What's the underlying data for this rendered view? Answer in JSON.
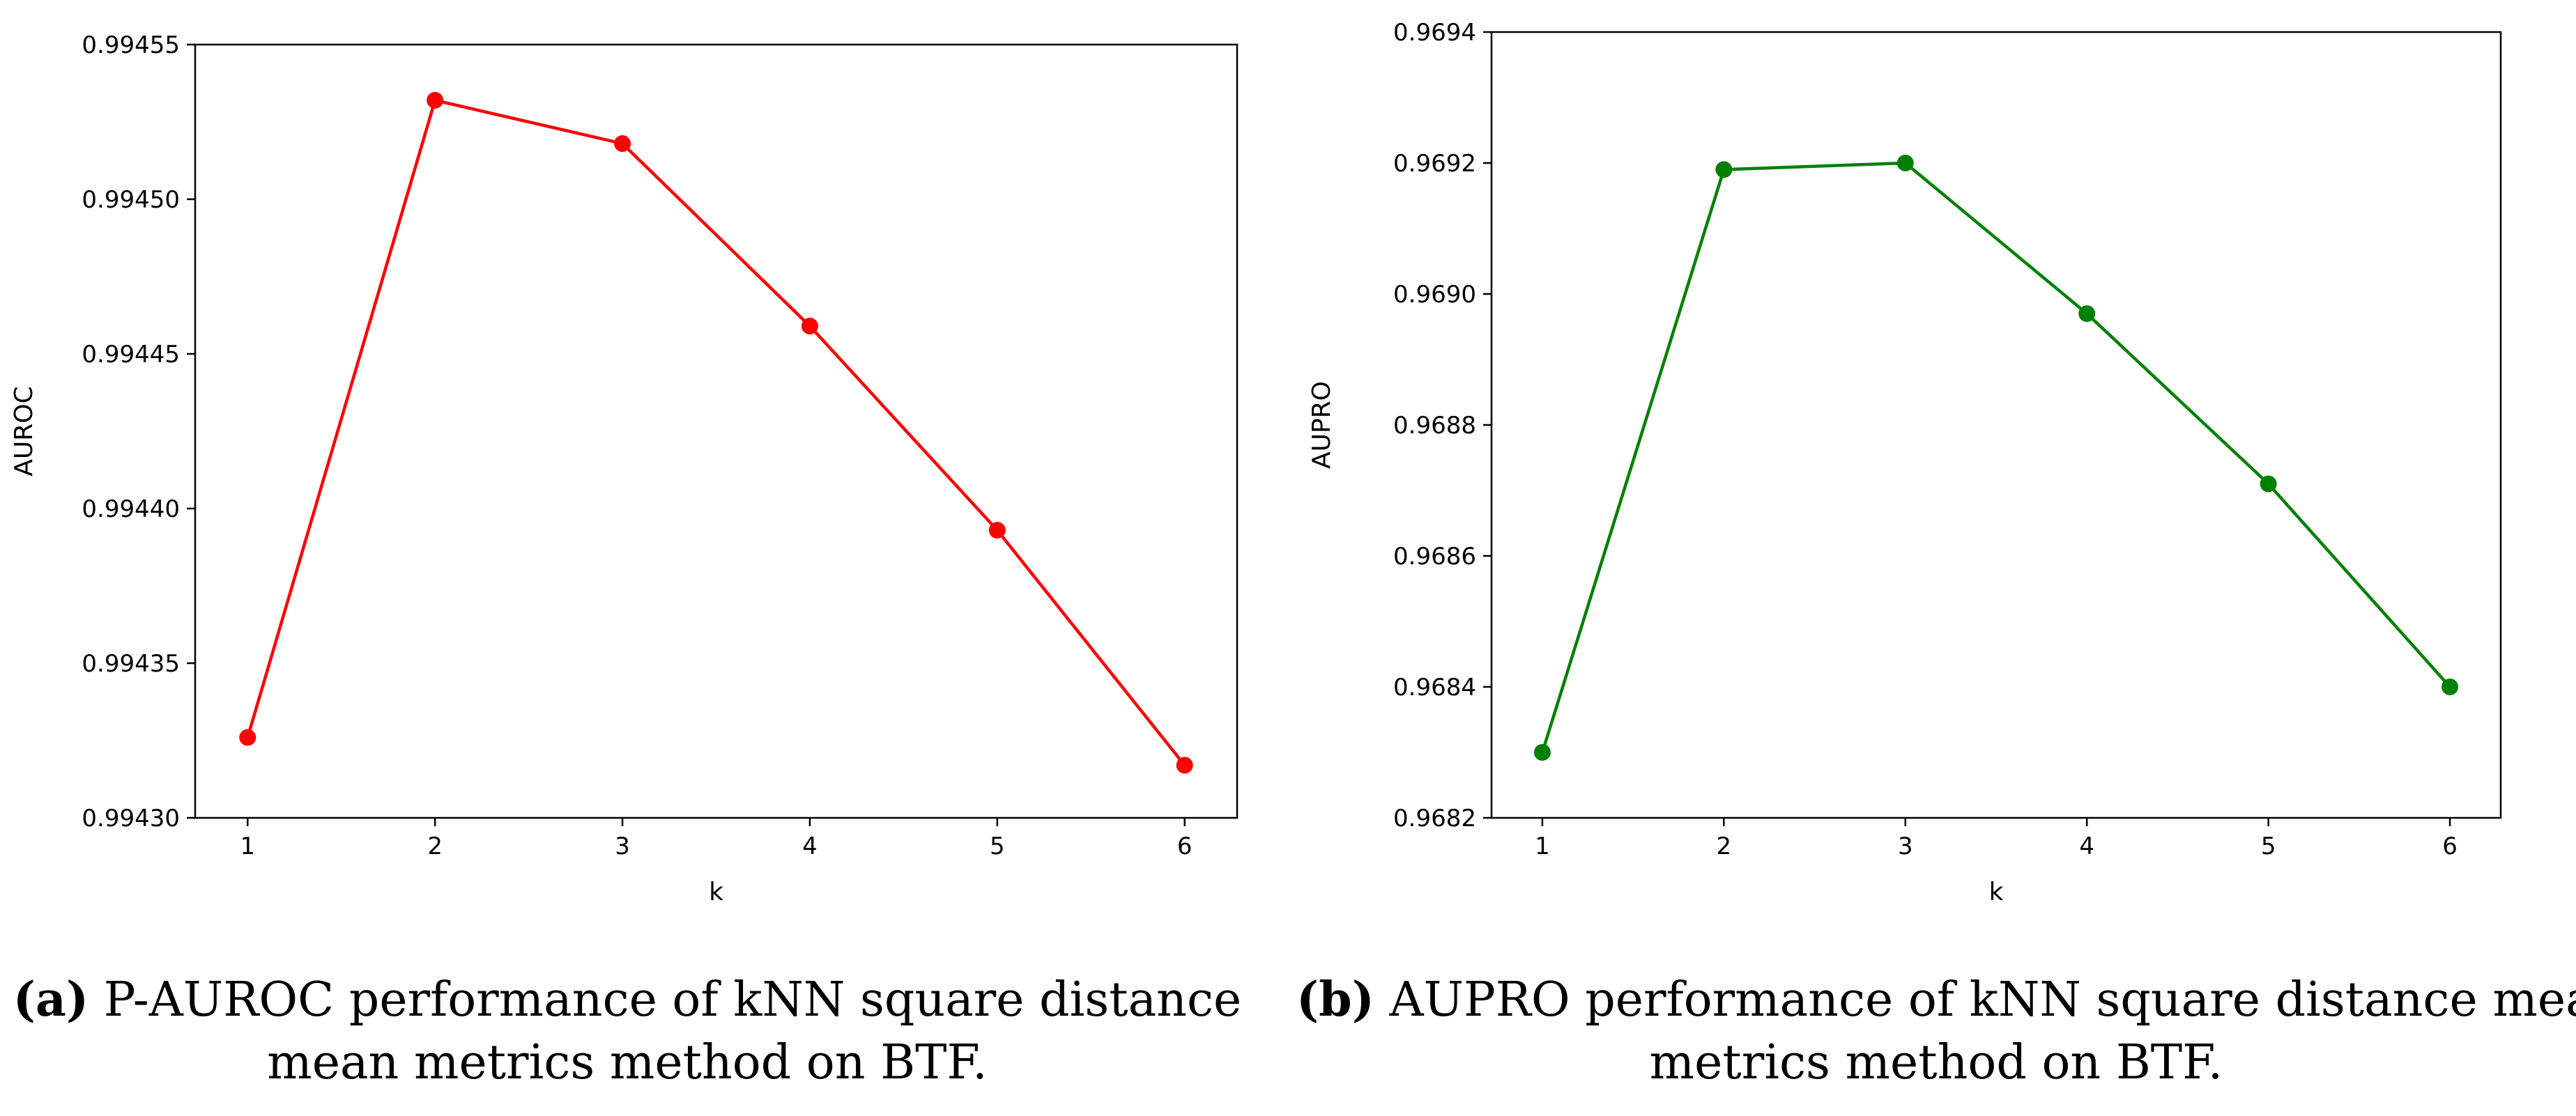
{
  "chart_data": [
    {
      "type": "line",
      "title": "",
      "xlabel": "k",
      "ylabel": "AUROC",
      "x": [
        1,
        2,
        3,
        4,
        5,
        6
      ],
      "series": [
        {
          "values": [
            0.994326,
            0.994532,
            0.994518,
            0.994459,
            0.994393,
            0.994317
          ],
          "color": "#ff0000",
          "marker": "circle"
        }
      ],
      "xlim": [
        0.72,
        6.28
      ],
      "ylim": [
        0.9943,
        0.99455
      ],
      "xticks": [
        "1",
        "2",
        "3",
        "4",
        "5",
        "6"
      ],
      "yticks": [
        "0.99430",
        "0.99435",
        "0.99440",
        "0.99445",
        "0.99450",
        "0.99455"
      ],
      "ytick_values": [
        0.9943,
        0.99435,
        0.9944,
        0.99445,
        0.9945,
        0.99455
      ],
      "grid": false,
      "caption": {
        "tag": "(a)",
        "lines": [
          "P-AUROC performance of kNN square distance",
          "mean metrics method on BTF."
        ]
      }
    },
    {
      "type": "line",
      "title": "",
      "xlabel": "k",
      "ylabel": "AUPRO",
      "x": [
        1,
        2,
        3,
        4,
        5,
        6
      ],
      "series": [
        {
          "values": [
            0.9683,
            0.96919,
            0.9692,
            0.96897,
            0.96871,
            0.9684
          ],
          "color": "#008000",
          "marker": "circle"
        }
      ],
      "xlim": [
        0.72,
        6.28
      ],
      "ylim": [
        0.9682,
        0.9694
      ],
      "xticks": [
        "1",
        "2",
        "3",
        "4",
        "5",
        "6"
      ],
      "yticks": [
        "0.9682",
        "0.9684",
        "0.9686",
        "0.9688",
        "0.9690",
        "0.9692",
        "0.9694"
      ],
      "ytick_values": [
        0.9682,
        0.9684,
        0.9686,
        0.9688,
        0.969,
        0.9692,
        0.9694
      ],
      "grid": false,
      "caption": {
        "tag": "(b)",
        "lines": [
          "AUPRO performance of kNN square distance mean",
          "metrics method on BTF."
        ]
      }
    }
  ]
}
